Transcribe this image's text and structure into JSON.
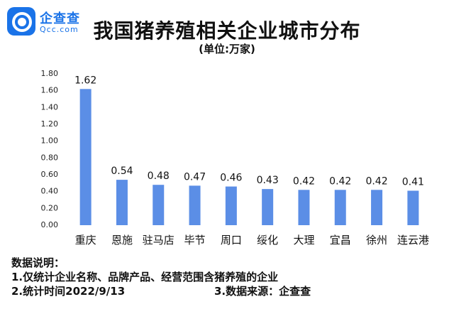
{
  "brand": {
    "logo_text": "企查查",
    "domain": "Qcc.com",
    "color": "#1a73e8"
  },
  "header": {
    "title": "我国猪养殖相关企业城市分布",
    "subtitle": "(单位:万家)"
  },
  "notes": {
    "heading": "数据说明：",
    "line1": "1.仅统计企业名称、品牌产品、经营范围含猪养殖的企业",
    "line2": "2.统计时间2022/9/13",
    "source": "3.数据来源：企查查"
  },
  "chart_data": {
    "type": "bar",
    "title": "我国猪养殖相关企业城市分布",
    "subtitle": "(单位:万家)",
    "categories": [
      "重庆",
      "恩施",
      "驻马店",
      "毕节",
      "周口",
      "绥化",
      "大理",
      "宜昌",
      "徐州",
      "连云港"
    ],
    "values": [
      1.62,
      0.54,
      0.48,
      0.47,
      0.46,
      0.43,
      0.42,
      0.42,
      0.42,
      0.41
    ],
    "data_labels": [
      "1.62",
      "0.54",
      "0.48",
      "0.47",
      "0.46",
      "0.43",
      "0.42",
      "0.42",
      "0.42",
      "0.41"
    ],
    "yticks": [
      "0.00",
      "0.20",
      "0.40",
      "0.60",
      "0.80",
      "1.00",
      "1.20",
      "1.40",
      "1.60",
      "1.80"
    ],
    "ylim": [
      0,
      1.8
    ],
    "xlabel": "",
    "ylabel": "",
    "grid": false,
    "legend": "none",
    "bar_color": "#5b8ee6"
  }
}
